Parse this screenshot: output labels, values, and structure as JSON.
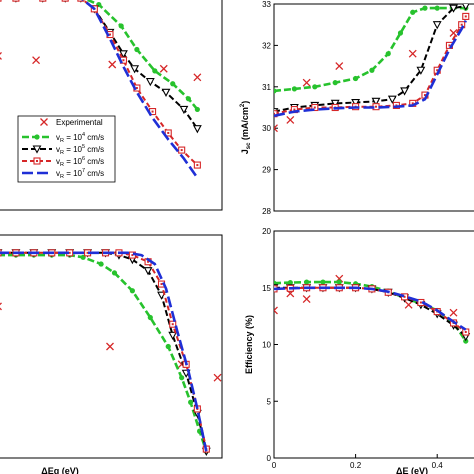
{
  "chart_data": [
    {
      "id": "tl",
      "type": "line",
      "xlabel": "",
      "ylabel": "",
      "xticks": [],
      "yticks": [],
      "xlim": [
        0,
        1
      ],
      "ylim": [
        0,
        1
      ],
      "legend": {
        "placement": "bottom-left",
        "entries": [
          {
            "label": "Experimental"
          },
          {
            "label": "v_R = 10^4 cm/s",
            "sup": "4"
          },
          {
            "label": "v_R = 10^5 cm/s",
            "sup": "5"
          },
          {
            "label": "v_R = 10^6 cm/s",
            "sup": "6"
          },
          {
            "label": "v_R = 10^7 cm/s",
            "sup": "7"
          }
        ],
        "prefix": "v",
        "sub": "R",
        "base": " = 10",
        "unit": " cm/s"
      },
      "series": [
        {
          "name": "Experimental",
          "style": "x",
          "color": "#d62728",
          "x": [
            0.0,
            0.17,
            0.51,
            0.74,
            0.89
          ],
          "y": [
            0.72,
            0.7,
            0.68,
            0.66,
            0.62
          ]
        },
        {
          "name": "v_R = 10^4 cm/s",
          "style": "green",
          "color": "#27c22d",
          "x": [
            0.0,
            0.08,
            0.2,
            0.3,
            0.38,
            0.45,
            0.55,
            0.62,
            0.7,
            0.78,
            0.85,
            0.89
          ],
          "y": [
            0.99,
            0.99,
            0.99,
            0.99,
            0.99,
            0.96,
            0.86,
            0.75,
            0.65,
            0.59,
            0.52,
            0.47
          ]
        },
        {
          "name": "v_R = 10^5 cm/s",
          "style": "black",
          "color": "#000000",
          "x": [
            0.0,
            0.08,
            0.2,
            0.3,
            0.37,
            0.43,
            0.5,
            0.56,
            0.61,
            0.68,
            0.75,
            0.83,
            0.89
          ],
          "y": [
            0.99,
            0.99,
            0.99,
            0.99,
            0.99,
            0.94,
            0.83,
            0.73,
            0.66,
            0.6,
            0.55,
            0.47,
            0.38
          ]
        },
        {
          "name": "v_R = 10^6 cm/s",
          "style": "red",
          "color": "#d62728",
          "x": [
            0.0,
            0.08,
            0.2,
            0.3,
            0.37,
            0.43,
            0.5,
            0.56,
            0.62,
            0.69,
            0.76,
            0.82,
            0.89
          ],
          "y": [
            0.99,
            0.99,
            0.99,
            0.99,
            0.99,
            0.94,
            0.82,
            0.7,
            0.57,
            0.46,
            0.36,
            0.28,
            0.21
          ]
        },
        {
          "name": "v_R = 10^7 cm/s",
          "style": "blue",
          "color": "#1f2fd6",
          "x": [
            0.0,
            0.1,
            0.2,
            0.3,
            0.37,
            0.43,
            0.5,
            0.56,
            0.62,
            0.69,
            0.76,
            0.83,
            0.89
          ],
          "y": [
            0.99,
            0.99,
            0.99,
            0.99,
            0.99,
            0.94,
            0.8,
            0.67,
            0.55,
            0.43,
            0.33,
            0.24,
            0.15
          ]
        }
      ]
    },
    {
      "id": "tr",
      "type": "line",
      "xlabel": "",
      "ylabel": "J_sc (mA/cm^2)",
      "ylabel_parts": {
        "main": "J",
        "sub": "sc",
        "unit": " (mA/cm",
        "sup": "2",
        "close": ")"
      },
      "yticks": [
        28,
        29,
        30,
        31,
        32,
        33
      ],
      "ylim": [
        28,
        33
      ],
      "xticks": [],
      "xlim": [
        0,
        0.5
      ],
      "series": [
        {
          "name": "Experimental",
          "style": "x",
          "color": "#d62728",
          "x": [
            0.0,
            0.04,
            0.08,
            0.16,
            0.34,
            0.44
          ],
          "y": [
            30.0,
            30.2,
            31.1,
            31.5,
            31.8,
            32.3
          ]
        },
        {
          "name": "v_R = 10^4 cm/s",
          "style": "green",
          "color": "#27c22d",
          "x": [
            0.0,
            0.05,
            0.1,
            0.15,
            0.2,
            0.24,
            0.28,
            0.31,
            0.34,
            0.37,
            0.4,
            0.44,
            0.47
          ],
          "y": [
            30.9,
            30.95,
            31.0,
            31.1,
            31.2,
            31.4,
            31.8,
            32.3,
            32.8,
            32.9,
            32.9,
            32.9,
            32.9
          ]
        },
        {
          "name": "v_R = 10^5 cm/s",
          "style": "black",
          "color": "#000000",
          "x": [
            0.0,
            0.05,
            0.1,
            0.15,
            0.2,
            0.25,
            0.29,
            0.32,
            0.36,
            0.4,
            0.44,
            0.47
          ],
          "y": [
            30.4,
            30.5,
            30.55,
            30.6,
            30.62,
            30.65,
            30.7,
            30.9,
            31.4,
            32.5,
            32.9,
            32.95
          ]
        },
        {
          "name": "v_R = 10^6 cm/s",
          "style": "red",
          "color": "#d62728",
          "x": [
            0.0,
            0.05,
            0.1,
            0.15,
            0.2,
            0.25,
            0.3,
            0.34,
            0.37,
            0.4,
            0.43,
            0.46,
            0.47
          ],
          "y": [
            30.35,
            30.45,
            30.5,
            30.5,
            30.52,
            30.52,
            30.55,
            30.6,
            30.8,
            31.4,
            32.0,
            32.5,
            32.7
          ]
        },
        {
          "name": "v_R = 10^7 cm/s",
          "style": "blue",
          "color": "#1f2fd6",
          "x": [
            0.0,
            0.05,
            0.1,
            0.15,
            0.2,
            0.25,
            0.3,
            0.34,
            0.37,
            0.4,
            0.43,
            0.46,
            0.47
          ],
          "y": [
            30.3,
            30.4,
            30.45,
            30.48,
            30.5,
            30.5,
            30.52,
            30.55,
            30.7,
            31.3,
            31.9,
            32.4,
            32.6
          ]
        }
      ]
    },
    {
      "id": "bl",
      "type": "line",
      "xlabel": "ΔEg (eV)",
      "ylabel": "",
      "xticks": [],
      "yticks": [],
      "xlim": [
        0,
        1
      ],
      "ylim": [
        0,
        1
      ],
      "series": [
        {
          "name": "Experimental",
          "style": "x",
          "color": "#d62728",
          "x": [
            0.0,
            0.5,
            0.82,
            0.98
          ],
          "y": [
            0.68,
            0.5,
            0.42,
            0.36
          ]
        },
        {
          "name": "v_R = 10^4 cm/s",
          "style": "green",
          "color": "#27c22d",
          "x": [
            0.0,
            0.08,
            0.16,
            0.24,
            0.32,
            0.38,
            0.46,
            0.52,
            0.6,
            0.68,
            0.76,
            0.82,
            0.86,
            0.9,
            0.93
          ],
          "y": [
            0.91,
            0.91,
            0.91,
            0.91,
            0.91,
            0.9,
            0.87,
            0.83,
            0.75,
            0.63,
            0.5,
            0.36,
            0.25,
            0.12,
            0.03
          ]
        },
        {
          "name": "v_R = 10^5 cm/s",
          "style": "black",
          "color": "#000000",
          "x": [
            0.0,
            0.08,
            0.16,
            0.24,
            0.32,
            0.4,
            0.48,
            0.54,
            0.6,
            0.67,
            0.73,
            0.78,
            0.84,
            0.89,
            0.93
          ],
          "y": [
            0.92,
            0.92,
            0.92,
            0.92,
            0.92,
            0.92,
            0.92,
            0.91,
            0.89,
            0.84,
            0.73,
            0.55,
            0.38,
            0.2,
            0.03
          ]
        },
        {
          "name": "v_R = 10^6 cm/s",
          "style": "red",
          "color": "#d62728",
          "x": [
            0.0,
            0.08,
            0.16,
            0.24,
            0.32,
            0.4,
            0.48,
            0.54,
            0.6,
            0.67,
            0.73,
            0.78,
            0.84,
            0.89,
            0.93
          ],
          "y": [
            0.92,
            0.92,
            0.92,
            0.92,
            0.92,
            0.92,
            0.92,
            0.92,
            0.91,
            0.88,
            0.78,
            0.6,
            0.42,
            0.22,
            0.04
          ]
        },
        {
          "name": "v_R = 10^7 cm/s",
          "style": "blue",
          "color": "#1f2fd6",
          "x": [
            0.0,
            0.1,
            0.2,
            0.3,
            0.4,
            0.5,
            0.58,
            0.64,
            0.7,
            0.75,
            0.8,
            0.85,
            0.89,
            0.93
          ],
          "y": [
            0.92,
            0.92,
            0.92,
            0.92,
            0.92,
            0.92,
            0.92,
            0.91,
            0.87,
            0.76,
            0.57,
            0.39,
            0.22,
            0.03
          ]
        }
      ]
    },
    {
      "id": "br",
      "type": "line",
      "xlabel": "ΔE (eV)",
      "ylabel": "Efficiency (%)",
      "yticks": [
        0,
        5,
        10,
        15,
        20
      ],
      "ylim": [
        0,
        20
      ],
      "xticks": [
        0,
        0.2,
        0.4
      ],
      "xtick_labels": [
        "0",
        "0.2",
        "0.4"
      ],
      "xlim": [
        0,
        0.5
      ],
      "series": [
        {
          "name": "Experimental",
          "style": "x",
          "color": "#d62728",
          "x": [
            0.0,
            0.04,
            0.08,
            0.16,
            0.33,
            0.44
          ],
          "y": [
            13.0,
            14.5,
            14.0,
            15.8,
            13.5,
            12.8
          ]
        },
        {
          "name": "v_R = 10^4 cm/s",
          "style": "green",
          "color": "#27c22d",
          "x": [
            0.0,
            0.04,
            0.08,
            0.12,
            0.16,
            0.2,
            0.24,
            0.28,
            0.32,
            0.36,
            0.4,
            0.44,
            0.47
          ],
          "y": [
            15.4,
            15.45,
            15.5,
            15.5,
            15.5,
            15.35,
            15.1,
            14.7,
            14.1,
            13.6,
            13.0,
            11.9,
            10.3
          ]
        },
        {
          "name": "v_R = 10^5 cm/s",
          "style": "black",
          "color": "#000000",
          "x": [
            0.0,
            0.04,
            0.08,
            0.12,
            0.16,
            0.2,
            0.24,
            0.28,
            0.32,
            0.36,
            0.4,
            0.44,
            0.47
          ],
          "y": [
            15.0,
            15.0,
            15.0,
            15.0,
            15.0,
            15.0,
            14.9,
            14.6,
            14.1,
            13.5,
            12.7,
            11.7,
            10.7
          ]
        },
        {
          "name": "v_R = 10^6 cm/s",
          "style": "red",
          "color": "#d62728",
          "x": [
            0.0,
            0.04,
            0.08,
            0.12,
            0.16,
            0.2,
            0.24,
            0.28,
            0.32,
            0.36,
            0.4,
            0.44,
            0.47
          ],
          "y": [
            14.9,
            14.95,
            15.0,
            15.0,
            15.0,
            15.0,
            14.9,
            14.6,
            14.2,
            13.7,
            12.9,
            11.9,
            11.1
          ]
        },
        {
          "name": "v_R = 10^7 cm/s",
          "style": "blue",
          "color": "#1f2fd6",
          "x": [
            0.0,
            0.04,
            0.08,
            0.12,
            0.16,
            0.2,
            0.24,
            0.28,
            0.32,
            0.36,
            0.4,
            0.44,
            0.47
          ],
          "y": [
            14.9,
            14.95,
            15.0,
            15.0,
            15.0,
            15.0,
            14.9,
            14.65,
            14.25,
            13.8,
            13.0,
            12.0,
            11.3
          ]
        }
      ]
    }
  ]
}
